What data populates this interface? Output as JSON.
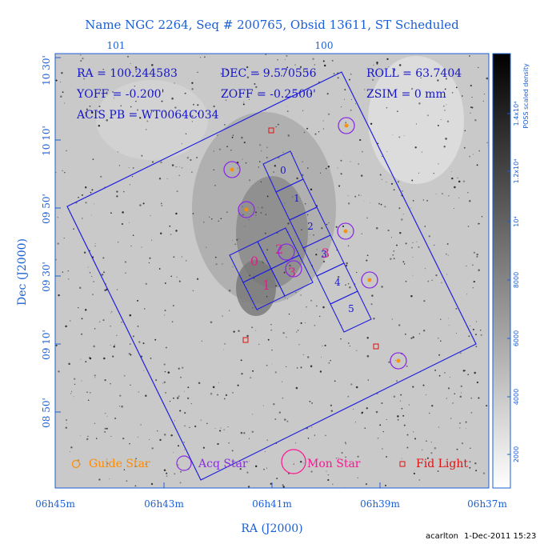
{
  "title": "Name NGC 2264, Seq # 200765, Obsid 13611, ST Scheduled",
  "top_axis_labels": [
    "101",
    "100"
  ],
  "info": {
    "ra": "RA = 100.244583",
    "dec": "DEC = 9.570556",
    "roll": "ROLL = 63.7404",
    "yoff": "YOFF = -0.200'",
    "zoff": "ZOFF = -0.2500'",
    "zsim": "ZSIM = 0 mm",
    "acis": "ACIS PB = WT0064C034"
  },
  "chart_data": {
    "type": "scatter",
    "xlabel": "RA (J2000)",
    "ylabel": "Dec (J2000)",
    "x_ticks": [
      "06h45m",
      "06h43m",
      "06h41m",
      "06h39m",
      "06h37m"
    ],
    "y_ticks": [
      "10 30'",
      "10 10'",
      "09 50'",
      "09 30'",
      "09 10'",
      "08 50'"
    ],
    "colorbar": {
      "label": "POSS scaled density",
      "ticks": [
        "1.4x10⁴",
        "1.2x10⁴",
        "10⁴",
        "8000",
        "6000",
        "4000",
        "2000"
      ]
    },
    "acis_chip_labels": [
      "0",
      "1",
      "2",
      "3",
      "4",
      "5"
    ],
    "acis_i_labels": [
      "0",
      "1",
      "2",
      "3"
    ],
    "legend": {
      "guide_star": "Guide Star",
      "acq_star": "Acq Star",
      "mon_star": "Mon Star",
      "fid_light": "Fid Light"
    },
    "colors": {
      "axis_text": "#1a5fd6",
      "guide": "#ff8c00",
      "acq": "#8a2be2",
      "mon": "#ff1493",
      "fid": "#e01010",
      "fov": "#2020dd"
    }
  },
  "footer": {
    "user": "acarlton",
    "date": "1-Dec-2011 15:23"
  }
}
